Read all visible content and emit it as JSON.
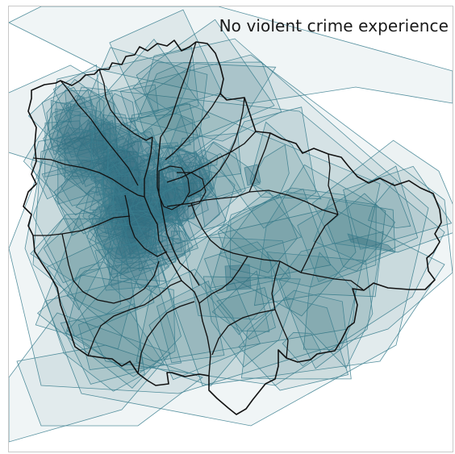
{
  "map": {
    "title": "No violent crime experience",
    "colors": {
      "background": "#ffffff",
      "polygon_fill": "#2f6b7b",
      "polygon_stroke": "#3b7f8f",
      "district_border": "#111111"
    }
  }
}
